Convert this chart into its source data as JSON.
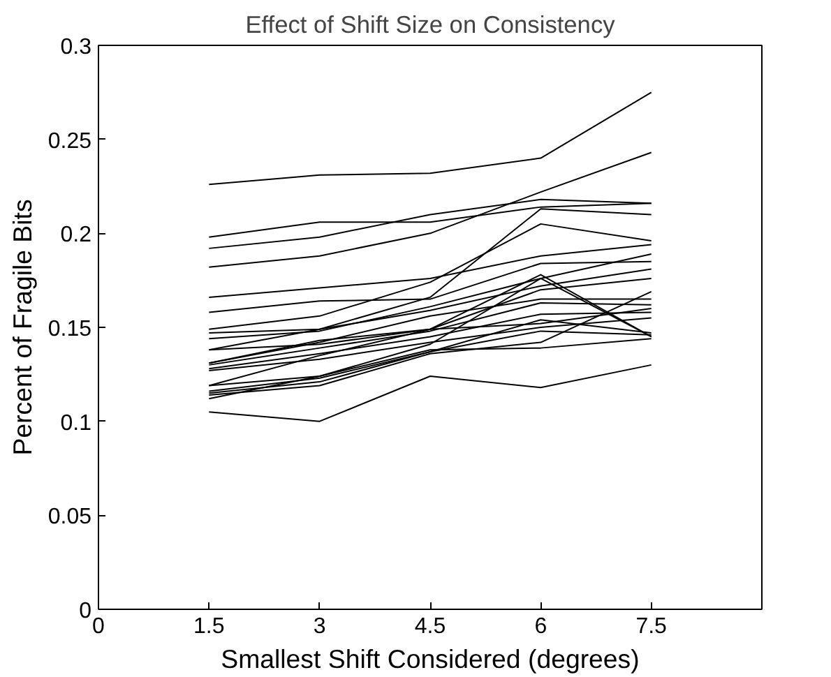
{
  "chart_data": {
    "type": "line",
    "title": "Effect of Shift Size on Consistency",
    "xlabel": "Smallest Shift Considered (degrees)",
    "ylabel": "Percent of Fragile Bits",
    "x": [
      1.5,
      3,
      4.5,
      6,
      7.5
    ],
    "xlim": [
      0,
      9
    ],
    "xticks": [
      0,
      1.5,
      3,
      4.5,
      6,
      7.5
    ],
    "ylim": [
      0,
      0.3
    ],
    "yticks": [
      0,
      0.05,
      0.1,
      0.15,
      0.2,
      0.25,
      0.3
    ],
    "grid": false,
    "marker": "none",
    "line_style": "solid",
    "series": [
      {
        "color": "#000000",
        "values": [
          0.226,
          0.231,
          0.232,
          0.24,
          0.275
        ]
      },
      {
        "color": "#000000",
        "values": [
          0.198,
          0.206,
          0.206,
          0.214,
          0.216
        ]
      },
      {
        "color": "#000000",
        "values": [
          0.192,
          0.198,
          0.21,
          0.218,
          0.216
        ]
      },
      {
        "color": "#000000",
        "values": [
          0.182,
          0.188,
          0.2,
          0.222,
          0.243
        ]
      },
      {
        "color": "#000000",
        "values": [
          0.166,
          0.171,
          0.176,
          0.188,
          0.194
        ]
      },
      {
        "color": "#000000",
        "values": [
          0.158,
          0.164,
          0.165,
          0.184,
          0.185
        ]
      },
      {
        "color": "#000000",
        "values": [
          0.149,
          0.156,
          0.174,
          0.205,
          0.196
        ]
      },
      {
        "color": "#000000",
        "values": [
          0.147,
          0.149,
          0.166,
          0.213,
          0.21
        ]
      },
      {
        "color": "#000000",
        "values": [
          0.144,
          0.148,
          0.161,
          0.176,
          0.189
        ]
      },
      {
        "color": "#000000",
        "values": [
          0.138,
          0.149,
          0.159,
          0.172,
          0.181
        ]
      },
      {
        "color": "#000000",
        "values": [
          0.138,
          0.141,
          0.149,
          0.17,
          0.176
        ]
      },
      {
        "color": "#000000",
        "values": [
          0.131,
          0.142,
          0.156,
          0.165,
          0.165
        ]
      },
      {
        "color": "#000000",
        "values": [
          0.131,
          0.143,
          0.149,
          0.178,
          0.145
        ]
      },
      {
        "color": "#000000",
        "values": [
          0.13,
          0.139,
          0.148,
          0.163,
          0.162
        ]
      },
      {
        "color": "#000000",
        "values": [
          0.128,
          0.136,
          0.145,
          0.157,
          0.158
        ]
      },
      {
        "color": "#000000",
        "values": [
          0.127,
          0.133,
          0.142,
          0.15,
          0.155
        ]
      },
      {
        "color": "#000000",
        "values": [
          0.119,
          0.135,
          0.149,
          0.152,
          0.16
        ]
      },
      {
        "color": "#000000",
        "values": [
          0.119,
          0.124,
          0.141,
          0.176,
          0.145
        ]
      },
      {
        "color": "#000000",
        "values": [
          0.116,
          0.123,
          0.137,
          0.154,
          0.147
        ]
      },
      {
        "color": "#000000",
        "values": [
          0.115,
          0.121,
          0.137,
          0.148,
          0.146
        ]
      },
      {
        "color": "#000000",
        "values": [
          0.114,
          0.119,
          0.136,
          0.142,
          0.169
        ]
      },
      {
        "color": "#000000",
        "values": [
          0.112,
          0.124,
          0.138,
          0.139,
          0.144
        ]
      },
      {
        "color": "#000000",
        "values": [
          0.105,
          0.1,
          0.124,
          0.118,
          0.13
        ]
      }
    ]
  }
}
